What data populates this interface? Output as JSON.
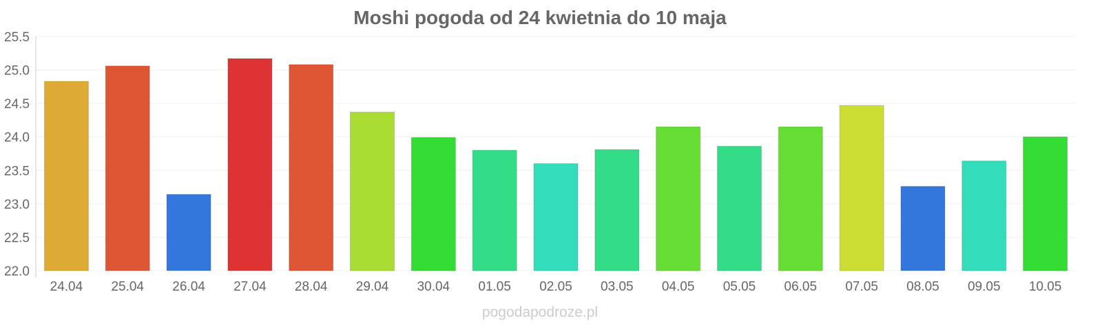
{
  "chart_data": {
    "type": "bar",
    "title": "Moshi pogoda od 24 kwietnia do 10 maja",
    "xlabel": "",
    "ylabel": "",
    "ylim": [
      22.0,
      25.5
    ],
    "yticks": [
      "22.0",
      "22.5",
      "23.0",
      "23.5",
      "24.0",
      "24.5",
      "25.0",
      "25.5"
    ],
    "grid": true,
    "categories": [
      "24.04",
      "25.04",
      "26.04",
      "27.04",
      "28.04",
      "29.04",
      "30.04",
      "01.05",
      "02.05",
      "03.05",
      "04.05",
      "05.05",
      "06.05",
      "07.05",
      "08.05",
      "09.05",
      "10.05"
    ],
    "values": [
      24.83,
      25.06,
      23.14,
      25.17,
      25.08,
      24.37,
      23.99,
      23.8,
      23.6,
      23.81,
      24.15,
      23.86,
      24.15,
      24.47,
      23.26,
      23.64,
      24.0
    ],
    "colors": [
      "#ddaa33",
      "#dd5533",
      "#3377dd",
      "#dd3333",
      "#dd5533",
      "#aadd33",
      "#33dd33",
      "#33dd88",
      "#33ddbb",
      "#33dd88",
      "#66dd33",
      "#33dd88",
      "#66dd33",
      "#ccdd33",
      "#3377dd",
      "#33ddbb",
      "#33dd33"
    ]
  },
  "footer": "pogodapodroze.pl"
}
